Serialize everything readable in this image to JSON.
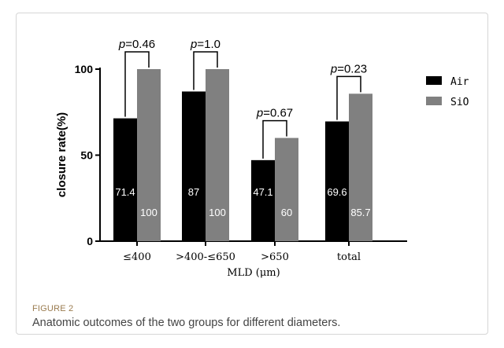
{
  "caption": {
    "label": "FIGURE 2",
    "text": "Anatomic outcomes of the two groups for different diameters."
  },
  "chart_data": {
    "type": "bar",
    "title": "",
    "xlabel": "MLD (μm)",
    "ylabel": "closure rate(%)",
    "ylim": [
      0,
      100
    ],
    "yticks": [
      "0",
      "50",
      "100"
    ],
    "categories": [
      "≤400",
      ">400-≤650",
      ">650",
      "total"
    ],
    "series": [
      {
        "name": "Air",
        "values": [
          71.4,
          87,
          47.1,
          69.6
        ],
        "labels": [
          "71.4",
          "87",
          "47.1",
          "69.6"
        ],
        "color": "#000000"
      },
      {
        "name": "SiO",
        "values": [
          100,
          100,
          60,
          85.7
        ],
        "labels": [
          "100",
          "100",
          "60",
          "85.7"
        ],
        "color": "#808080"
      }
    ],
    "annotations": [
      "p=0.46",
      "p=1.0",
      "p=0.67",
      "p=0.23"
    ],
    "legend": "top-right",
    "grid": false
  }
}
